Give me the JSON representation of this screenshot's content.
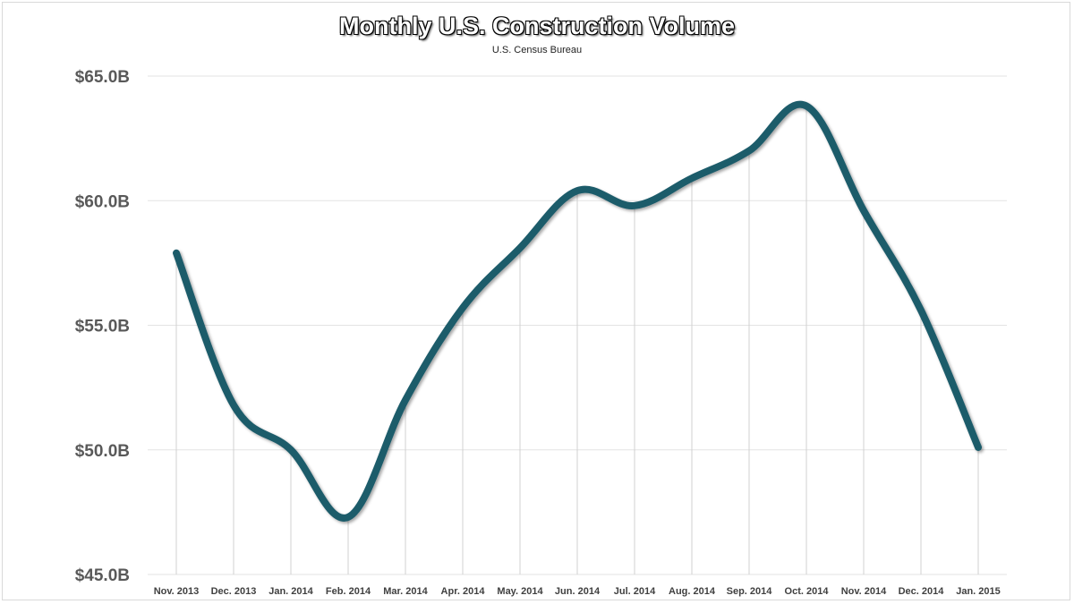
{
  "chart_data": {
    "type": "line",
    "title": "Monthly U.S. Construction Volume",
    "subtitle": "U.S. Census Bureau",
    "xlabel": "",
    "ylabel": "",
    "categories": [
      "Nov. 2013",
      "Dec. 2013",
      "Jan. 2014",
      "Feb. 2014",
      "Mar. 2014",
      "Apr. 2014",
      "May. 2014",
      "Jun. 2014",
      "Jul. 2014",
      "Aug. 2014",
      "Sep. 2014",
      "Oct. 2014",
      "Nov. 2014",
      "Dec. 2014",
      "Jan. 2015"
    ],
    "series": [
      {
        "values": [
          57.9,
          51.8,
          50.0,
          47.3,
          52.0,
          55.7,
          58.1,
          60.4,
          59.8,
          60.9,
          62.0,
          63.8,
          59.6,
          55.6,
          50.1
        ]
      }
    ],
    "ylim": [
      45,
      65
    ],
    "yticks": [
      45,
      50,
      55,
      60,
      65
    ],
    "ytick_labels": [
      "$45.0B",
      "$50.0B",
      "$55.0B",
      "$60.0B",
      "$65.0B"
    ],
    "grid": true,
    "smoothed": true,
    "line_color": "#1f5b6b"
  }
}
